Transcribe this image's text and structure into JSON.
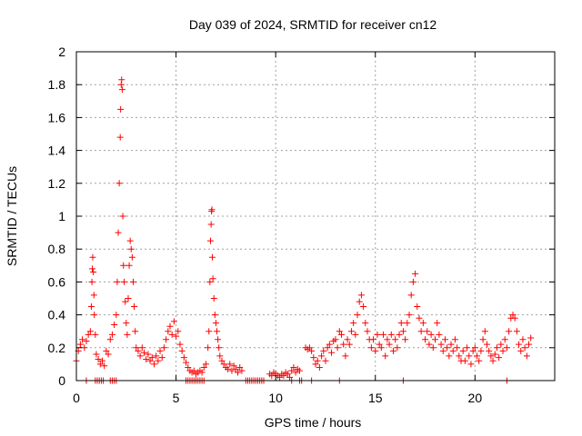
{
  "chart_data": {
    "type": "scatter",
    "title": "Day 039 of 2024, SRMTID for receiver cn12",
    "xlabel": "GPS time / hours",
    "ylabel": "SRMTID / TECUs",
    "xlim": [
      0,
      24
    ],
    "ylim": [
      0,
      2
    ],
    "x_ticks": [
      {
        "value": 0,
        "label": "0"
      },
      {
        "value": 5,
        "label": "5"
      },
      {
        "value": 10,
        "label": "10"
      },
      {
        "value": 15,
        "label": "15"
      },
      {
        "value": 20,
        "label": "20"
      }
    ],
    "y_ticks": [
      {
        "value": 0,
        "label": "0"
      },
      {
        "value": 0.2,
        "label": "0.2"
      },
      {
        "value": 0.4,
        "label": "0.4"
      },
      {
        "value": 0.6,
        "label": "0.6"
      },
      {
        "value": 0.8,
        "label": "0.8"
      },
      {
        "value": 1.0,
        "label": "1"
      },
      {
        "value": 1.2,
        "label": "1.2"
      },
      {
        "value": 1.4,
        "label": "1.4"
      },
      {
        "value": 1.6,
        "label": "1.6"
      },
      {
        "value": 1.8,
        "label": "1.8"
      },
      {
        "value": 2.0,
        "label": "2"
      }
    ],
    "grid": true,
    "marker": "plus",
    "marker_color": "#ff0000",
    "series": [
      {
        "name": "SRMTID",
        "points": [
          [
            0.0,
            0.12
          ],
          [
            0.1,
            0.18
          ],
          [
            0.2,
            0.22
          ],
          [
            0.3,
            0.25
          ],
          [
            0.4,
            0.2
          ],
          [
            0.5,
            0.24
          ],
          [
            0.6,
            0.28
          ],
          [
            0.7,
            0.3
          ],
          [
            0.75,
            0.45
          ],
          [
            0.78,
            0.6
          ],
          [
            0.8,
            0.68
          ],
          [
            0.82,
            0.75
          ],
          [
            0.85,
            0.66
          ],
          [
            0.88,
            0.52
          ],
          [
            0.9,
            0.4
          ],
          [
            0.95,
            0.28
          ],
          [
            1.0,
            0.16
          ],
          [
            1.1,
            0.13
          ],
          [
            1.2,
            0.1
          ],
          [
            1.3,
            0.12
          ],
          [
            1.4,
            0.09
          ],
          [
            1.5,
            0.18
          ],
          [
            1.6,
            0.16
          ],
          [
            1.7,
            0.25
          ],
          [
            1.8,
            0.28
          ],
          [
            1.9,
            0.34
          ],
          [
            2.0,
            0.4
          ],
          [
            2.05,
            0.6
          ],
          [
            2.1,
            0.9
          ],
          [
            2.15,
            1.2
          ],
          [
            2.2,
            1.48
          ],
          [
            2.22,
            1.65
          ],
          [
            2.25,
            1.8
          ],
          [
            2.27,
            1.83
          ],
          [
            2.3,
            1.77
          ],
          [
            2.33,
            1.0
          ],
          [
            2.36,
            0.7
          ],
          [
            2.4,
            0.6
          ],
          [
            2.45,
            0.48
          ],
          [
            2.5,
            0.35
          ],
          [
            2.55,
            0.28
          ],
          [
            2.6,
            0.5
          ],
          [
            2.65,
            0.7
          ],
          [
            2.7,
            0.85
          ],
          [
            2.75,
            0.8
          ],
          [
            2.8,
            0.75
          ],
          [
            2.85,
            0.6
          ],
          [
            2.9,
            0.45
          ],
          [
            2.95,
            0.3
          ],
          [
            3.0,
            0.2
          ],
          [
            3.1,
            0.18
          ],
          [
            3.2,
            0.15
          ],
          [
            3.3,
            0.2
          ],
          [
            3.4,
            0.17
          ],
          [
            3.5,
            0.13
          ],
          [
            3.6,
            0.16
          ],
          [
            3.7,
            0.12
          ],
          [
            3.8,
            0.14
          ],
          [
            3.9,
            0.1
          ],
          [
            4.0,
            0.15
          ],
          [
            4.1,
            0.12
          ],
          [
            4.2,
            0.18
          ],
          [
            4.3,
            0.14
          ],
          [
            4.4,
            0.2
          ],
          [
            4.5,
            0.25
          ],
          [
            4.6,
            0.3
          ],
          [
            4.7,
            0.33
          ],
          [
            4.8,
            0.28
          ],
          [
            4.9,
            0.36
          ],
          [
            5.0,
            0.27
          ],
          [
            5.1,
            0.3
          ],
          [
            5.2,
            0.22
          ],
          [
            5.3,
            0.18
          ],
          [
            5.4,
            0.14
          ],
          [
            5.5,
            0.11
          ],
          [
            5.6,
            0.08
          ],
          [
            5.7,
            0.06
          ],
          [
            5.8,
            0.05
          ],
          [
            5.9,
            0.06
          ],
          [
            6.0,
            0.04
          ],
          [
            6.1,
            0.05
          ],
          [
            6.2,
            0.06
          ],
          [
            6.3,
            0.05
          ],
          [
            6.4,
            0.08
          ],
          [
            6.5,
            0.1
          ],
          [
            6.6,
            0.2
          ],
          [
            6.65,
            0.3
          ],
          [
            6.7,
            0.6
          ],
          [
            6.73,
            0.85
          ],
          [
            6.76,
            0.95
          ],
          [
            6.78,
            1.03
          ],
          [
            6.8,
            1.04
          ],
          [
            6.82,
            0.75
          ],
          [
            6.85,
            0.62
          ],
          [
            6.9,
            0.5
          ],
          [
            6.95,
            0.4
          ],
          [
            7.0,
            0.35
          ],
          [
            7.05,
            0.3
          ],
          [
            7.1,
            0.25
          ],
          [
            7.15,
            0.2
          ],
          [
            7.2,
            0.15
          ],
          [
            7.3,
            0.12
          ],
          [
            7.4,
            0.1
          ],
          [
            7.5,
            0.08
          ],
          [
            7.6,
            0.07
          ],
          [
            7.7,
            0.1
          ],
          [
            7.8,
            0.06
          ],
          [
            7.9,
            0.09
          ],
          [
            8.0,
            0.07
          ],
          [
            8.1,
            0.05
          ],
          [
            8.2,
            0.08
          ],
          [
            8.3,
            0.06
          ],
          [
            9.7,
            0.04
          ],
          [
            9.8,
            0.03
          ],
          [
            9.9,
            0.05
          ],
          [
            10.0,
            0.04
          ],
          [
            10.1,
            0.03
          ],
          [
            10.2,
            0.02
          ],
          [
            10.3,
            0.04
          ],
          [
            10.4,
            0.03
          ],
          [
            10.5,
            0.05
          ],
          [
            10.6,
            0.04
          ],
          [
            10.7,
            0.02
          ],
          [
            10.8,
            0.06
          ],
          [
            10.9,
            0.08
          ],
          [
            11.0,
            0.05
          ],
          [
            11.1,
            0.07
          ],
          [
            11.2,
            0.06
          ],
          [
            11.5,
            0.2
          ],
          [
            11.6,
            0.19
          ],
          [
            11.7,
            0.2
          ],
          [
            11.8,
            0.18
          ],
          [
            11.9,
            0.14
          ],
          [
            12.0,
            0.1
          ],
          [
            12.1,
            0.12
          ],
          [
            12.2,
            0.08
          ],
          [
            12.3,
            0.15
          ],
          [
            12.4,
            0.18
          ],
          [
            12.5,
            0.12
          ],
          [
            12.6,
            0.2
          ],
          [
            12.7,
            0.22
          ],
          [
            12.8,
            0.17
          ],
          [
            12.9,
            0.24
          ],
          [
            13.0,
            0.25
          ],
          [
            13.1,
            0.2
          ],
          [
            13.2,
            0.3
          ],
          [
            13.3,
            0.28
          ],
          [
            13.4,
            0.22
          ],
          [
            13.5,
            0.15
          ],
          [
            13.6,
            0.25
          ],
          [
            13.7,
            0.22
          ],
          [
            13.8,
            0.3
          ],
          [
            13.9,
            0.35
          ],
          [
            14.0,
            0.28
          ],
          [
            14.1,
            0.4
          ],
          [
            14.2,
            0.48
          ],
          [
            14.3,
            0.52
          ],
          [
            14.4,
            0.45
          ],
          [
            14.5,
            0.35
          ],
          [
            14.6,
            0.3
          ],
          [
            14.7,
            0.25
          ],
          [
            14.8,
            0.2
          ],
          [
            14.9,
            0.25
          ],
          [
            15.0,
            0.18
          ],
          [
            15.1,
            0.28
          ],
          [
            15.2,
            0.22
          ],
          [
            15.3,
            0.2
          ],
          [
            15.4,
            0.28
          ],
          [
            15.5,
            0.15
          ],
          [
            15.6,
            0.25
          ],
          [
            15.7,
            0.22
          ],
          [
            15.8,
            0.28
          ],
          [
            15.9,
            0.18
          ],
          [
            16.0,
            0.25
          ],
          [
            16.1,
            0.2
          ],
          [
            16.2,
            0.28
          ],
          [
            16.3,
            0.35
          ],
          [
            16.4,
            0.3
          ],
          [
            16.5,
            0.25
          ],
          [
            16.6,
            0.35
          ],
          [
            16.7,
            0.4
          ],
          [
            16.8,
            0.52
          ],
          [
            16.9,
            0.6
          ],
          [
            17.0,
            0.65
          ],
          [
            17.1,
            0.45
          ],
          [
            17.2,
            0.38
          ],
          [
            17.3,
            0.3
          ],
          [
            17.4,
            0.35
          ],
          [
            17.5,
            0.25
          ],
          [
            17.6,
            0.3
          ],
          [
            17.7,
            0.22
          ],
          [
            17.8,
            0.28
          ],
          [
            17.9,
            0.2
          ],
          [
            18.0,
            0.25
          ],
          [
            18.1,
            0.35
          ],
          [
            18.2,
            0.28
          ],
          [
            18.3,
            0.22
          ],
          [
            18.4,
            0.18
          ],
          [
            18.5,
            0.25
          ],
          [
            18.6,
            0.2
          ],
          [
            18.7,
            0.15
          ],
          [
            18.8,
            0.22
          ],
          [
            18.9,
            0.18
          ],
          [
            19.0,
            0.25
          ],
          [
            19.1,
            0.2
          ],
          [
            19.2,
            0.15
          ],
          [
            19.3,
            0.12
          ],
          [
            19.4,
            0.18
          ],
          [
            19.5,
            0.12
          ],
          [
            19.6,
            0.2
          ],
          [
            19.7,
            0.15
          ],
          [
            19.8,
            0.1
          ],
          [
            19.9,
            0.18
          ],
          [
            20.0,
            0.2
          ],
          [
            20.1,
            0.15
          ],
          [
            20.2,
            0.12
          ],
          [
            20.3,
            0.18
          ],
          [
            20.4,
            0.25
          ],
          [
            20.5,
            0.3
          ],
          [
            20.6,
            0.22
          ],
          [
            20.7,
            0.18
          ],
          [
            20.8,
            0.15
          ],
          [
            20.9,
            0.12
          ],
          [
            21.0,
            0.16
          ],
          [
            21.1,
            0.2
          ],
          [
            21.2,
            0.14
          ],
          [
            21.3,
            0.22
          ],
          [
            21.4,
            0.18
          ],
          [
            21.5,
            0.25
          ],
          [
            21.6,
            0.2
          ],
          [
            21.7,
            0.3
          ],
          [
            21.8,
            0.38
          ],
          [
            21.9,
            0.4
          ],
          [
            22.0,
            0.38
          ],
          [
            22.1,
            0.3
          ],
          [
            22.2,
            0.22
          ],
          [
            22.3,
            0.18
          ],
          [
            22.4,
            0.25
          ],
          [
            22.5,
            0.2
          ],
          [
            22.6,
            0.15
          ],
          [
            22.7,
            0.22
          ],
          [
            22.8,
            0.26
          ],
          [
            0.5,
            0
          ],
          [
            0.95,
            0
          ],
          [
            1.05,
            0
          ],
          [
            1.15,
            0
          ],
          [
            1.25,
            0
          ],
          [
            1.35,
            0
          ],
          [
            1.7,
            0
          ],
          [
            1.8,
            0
          ],
          [
            1.9,
            0
          ],
          [
            2.0,
            0
          ],
          [
            5.5,
            0
          ],
          [
            5.6,
            0
          ],
          [
            5.7,
            0
          ],
          [
            5.8,
            0
          ],
          [
            5.9,
            0
          ],
          [
            6.0,
            0
          ],
          [
            6.1,
            0
          ],
          [
            6.2,
            0
          ],
          [
            6.3,
            0
          ],
          [
            6.4,
            0
          ],
          [
            8.5,
            0
          ],
          [
            8.6,
            0
          ],
          [
            8.7,
            0
          ],
          [
            8.8,
            0
          ],
          [
            8.9,
            0
          ],
          [
            9.0,
            0
          ],
          [
            9.1,
            0
          ],
          [
            9.2,
            0
          ],
          [
            9.3,
            0
          ],
          [
            9.4,
            0
          ],
          [
            10.8,
            0
          ],
          [
            11.2,
            0
          ],
          [
            11.3,
            0
          ],
          [
            11.8,
            0
          ],
          [
            13.2,
            0
          ],
          [
            16.4,
            0
          ],
          [
            21.6,
            0
          ]
        ]
      }
    ]
  }
}
